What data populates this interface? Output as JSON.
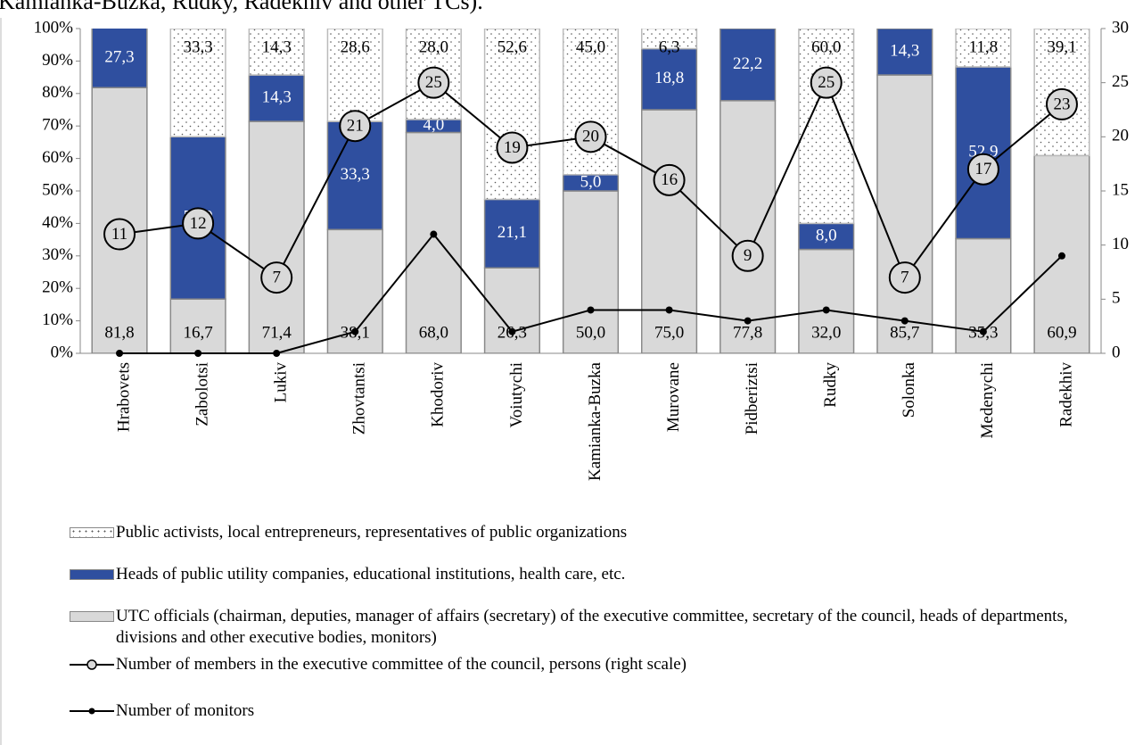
{
  "chart_data": {
    "type": "stacked_bar_line",
    "title": "Kamianka-Buzka, Rudky, Radekhiv and other TCs).",
    "categories": [
      "Hrabovets",
      "Zabolotsi",
      "Lukiv",
      "Zhovtantsi",
      "Khodoriv",
      "Voiutychi",
      "Kamianka-Buzka",
      "Murovane",
      "Pidberiztsi",
      "Rudky",
      "Solonka",
      "Medenychi",
      "Radekhiv"
    ],
    "series": [
      {
        "name": "UTC officials (chairman, deputies, manager of affairs (secretary) of the executive committee, secretary of the council, heads of departments, divisions and other executive bodies, monitors)",
        "color": "#d9d9d9",
        "values": [
          81.8,
          16.7,
          71.4,
          38.1,
          68.0,
          26.3,
          50.0,
          75.0,
          77.8,
          32.0,
          85.7,
          35.3,
          60.9
        ],
        "value_labels": [
          "81,8",
          "16,7",
          "71,4",
          "38,1",
          "68,0",
          "26,3",
          "50,0",
          "75,0",
          "77,8",
          "32,0",
          "85,7",
          "35,3",
          "60,9"
        ]
      },
      {
        "name": "Heads of public utility companies, educational institutions, health care, etc.",
        "color": "#2f4f9f",
        "values": [
          27.3,
          50.0,
          14.3,
          33.3,
          4.0,
          21.1,
          5.0,
          18.8,
          22.2,
          8.0,
          14.3,
          52.9,
          null
        ],
        "value_labels": [
          "27,3",
          "50,0",
          "14,3",
          "33,3",
          "4,0",
          "21,1",
          "5,0",
          "18,8",
          "22,2",
          "8,0",
          "14,3",
          "52,9",
          null
        ]
      },
      {
        "name": "Public activists, local entrepreneurs, representatives of public organizations",
        "color": "#ffffff",
        "pattern": "dots",
        "values": [
          null,
          33.3,
          14.3,
          28.6,
          28.0,
          52.6,
          45.0,
          6.3,
          null,
          60.0,
          null,
          11.8,
          39.1
        ],
        "value_labels": [
          null,
          "33,3",
          "14,3",
          "28,6",
          "28,0",
          "52,6",
          "45,0",
          "6,3",
          null,
          "60,0",
          null,
          "11,8",
          "39,1"
        ]
      },
      {
        "name": "Number of members in the executive committee of the council, persons (right scale)",
        "type": "line",
        "axis": "y2",
        "color": "#000000",
        "marker": "big-circle",
        "values": [
          11,
          12,
          7,
          21,
          25,
          19,
          20,
          16,
          9,
          25,
          7,
          17,
          23
        ]
      },
      {
        "name": "Number of monitors",
        "type": "line",
        "axis": "y2",
        "color": "#000000",
        "marker": "dot",
        "values": [
          0,
          0,
          0,
          2,
          11,
          2,
          4,
          4,
          3,
          4,
          3,
          2,
          9
        ]
      }
    ],
    "ylim": [
      0,
      100
    ],
    "yticks": [
      {
        "value": 0,
        "label": "0%"
      },
      {
        "value": 10,
        "label": "10%"
      },
      {
        "value": 20,
        "label": "20%"
      },
      {
        "value": 30,
        "label": "30%"
      },
      {
        "value": 40,
        "label": "40%"
      },
      {
        "value": 50,
        "label": "50%"
      },
      {
        "value": 60,
        "label": "60%"
      },
      {
        "value": 70,
        "label": "70%"
      },
      {
        "value": 80,
        "label": "80%"
      },
      {
        "value": 90,
        "label": "90%"
      },
      {
        "value": 100,
        "label": "100%"
      }
    ],
    "y2lim": [
      0,
      30
    ],
    "y2ticks": [
      0,
      5,
      10,
      15,
      20,
      25,
      30
    ]
  }
}
